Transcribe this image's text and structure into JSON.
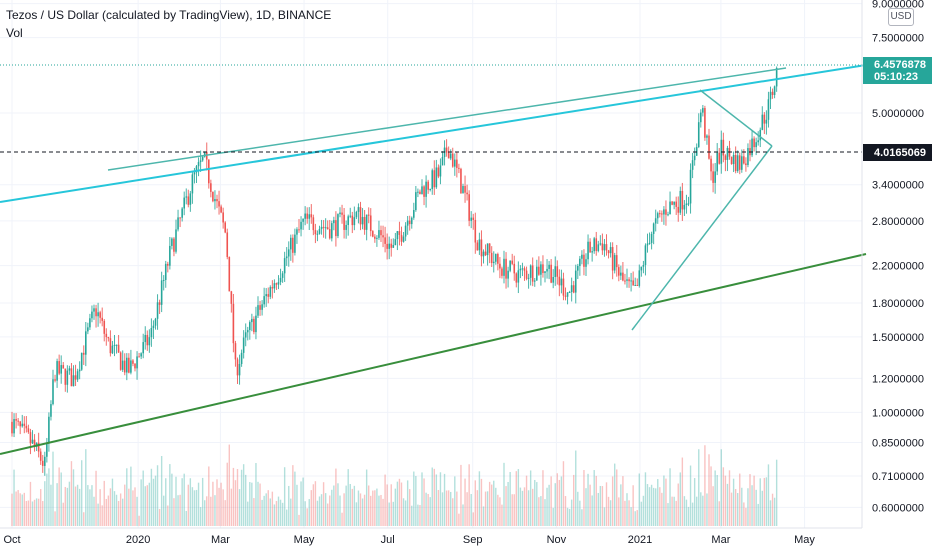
{
  "header": {
    "title": "Tezos / US Dollar (calculated by TradingView), 1D, BINANCE",
    "vol_label": "Vol",
    "currency": "USD"
  },
  "colors": {
    "up": "#26a69a",
    "down": "#ef5350",
    "teal_line": "#26c6da",
    "teal_line_light": "#4db6ac",
    "green_line": "#388e3c",
    "price_label": "#26a69a",
    "level_label": "#131722"
  },
  "chart_data": {
    "type": "candlestick",
    "title": "Tezos / US Dollar (calculated by TradingView), 1D, BINANCE",
    "y_scale": "log",
    "ylim": [
      0.55,
      9.0
    ],
    "x_ticks": [
      "Oct",
      "2020",
      "Mar",
      "May",
      "Jul",
      "Sep",
      "Nov",
      "2021",
      "Mar",
      "May"
    ],
    "y_ticks": [
      "9.0000000",
      "7.5000000",
      "6.4576878",
      "5.0000000",
      "4.0165069",
      "3.4000000",
      "2.8000000",
      "2.2000000",
      "1.8000000",
      "1.5000000",
      "1.2000000",
      "1.0000000",
      "0.8500000",
      "0.7100000",
      "0.6000000"
    ],
    "last_price": "6.4576878",
    "countdown": "05:10:23",
    "horizontal_level": "4.0165069",
    "price_path": [
      [
        "2019-10-01",
        0.95
      ],
      [
        "2019-10-15",
        0.85
      ],
      [
        "2019-10-25",
        0.75
      ],
      [
        "2019-11-01",
        1.25
      ],
      [
        "2019-11-15",
        1.2
      ],
      [
        "2019-12-01",
        1.75
      ],
      [
        "2019-12-10",
        1.45
      ],
      [
        "2019-12-25",
        1.25
      ],
      [
        "2020-01-10",
        1.5
      ],
      [
        "2020-01-25",
        2.4
      ],
      [
        "2020-02-10",
        3.5
      ],
      [
        "2020-02-18",
        3.9
      ],
      [
        "2020-02-28",
        3.0
      ],
      [
        "2020-03-05",
        2.6
      ],
      [
        "2020-03-12",
        1.25
      ],
      [
        "2020-03-20",
        1.5
      ],
      [
        "2020-04-01",
        1.8
      ],
      [
        "2020-04-15",
        2.2
      ],
      [
        "2020-05-01",
        2.8
      ],
      [
        "2020-05-20",
        2.7
      ],
      [
        "2020-06-10",
        2.9
      ],
      [
        "2020-06-25",
        2.6
      ],
      [
        "2020-07-05",
        2.4
      ],
      [
        "2020-07-25",
        3.3
      ],
      [
        "2020-08-08",
        3.6
      ],
      [
        "2020-08-14",
        4.2
      ],
      [
        "2020-08-25",
        3.3
      ],
      [
        "2020-09-05",
        2.5
      ],
      [
        "2020-09-20",
        2.2
      ],
      [
        "2020-10-05",
        2.1
      ],
      [
        "2020-10-25",
        2.2
      ],
      [
        "2020-11-10",
        1.9
      ],
      [
        "2020-11-25",
        2.4
      ],
      [
        "2020-12-05",
        2.5
      ],
      [
        "2020-12-20",
        2.0
      ],
      [
        "2020-12-29",
        1.9
      ],
      [
        "2021-01-08",
        2.6
      ],
      [
        "2021-01-20",
        3.0
      ],
      [
        "2021-02-05",
        3.2
      ],
      [
        "2021-02-15",
        5.2
      ],
      [
        "2021-02-22",
        3.5
      ],
      [
        "2021-03-01",
        4.1
      ],
      [
        "2021-03-15",
        3.8
      ],
      [
        "2021-03-25",
        4.3
      ],
      [
        "2021-04-05",
        5.2
      ],
      [
        "2021-04-12",
        6.46
      ]
    ]
  }
}
